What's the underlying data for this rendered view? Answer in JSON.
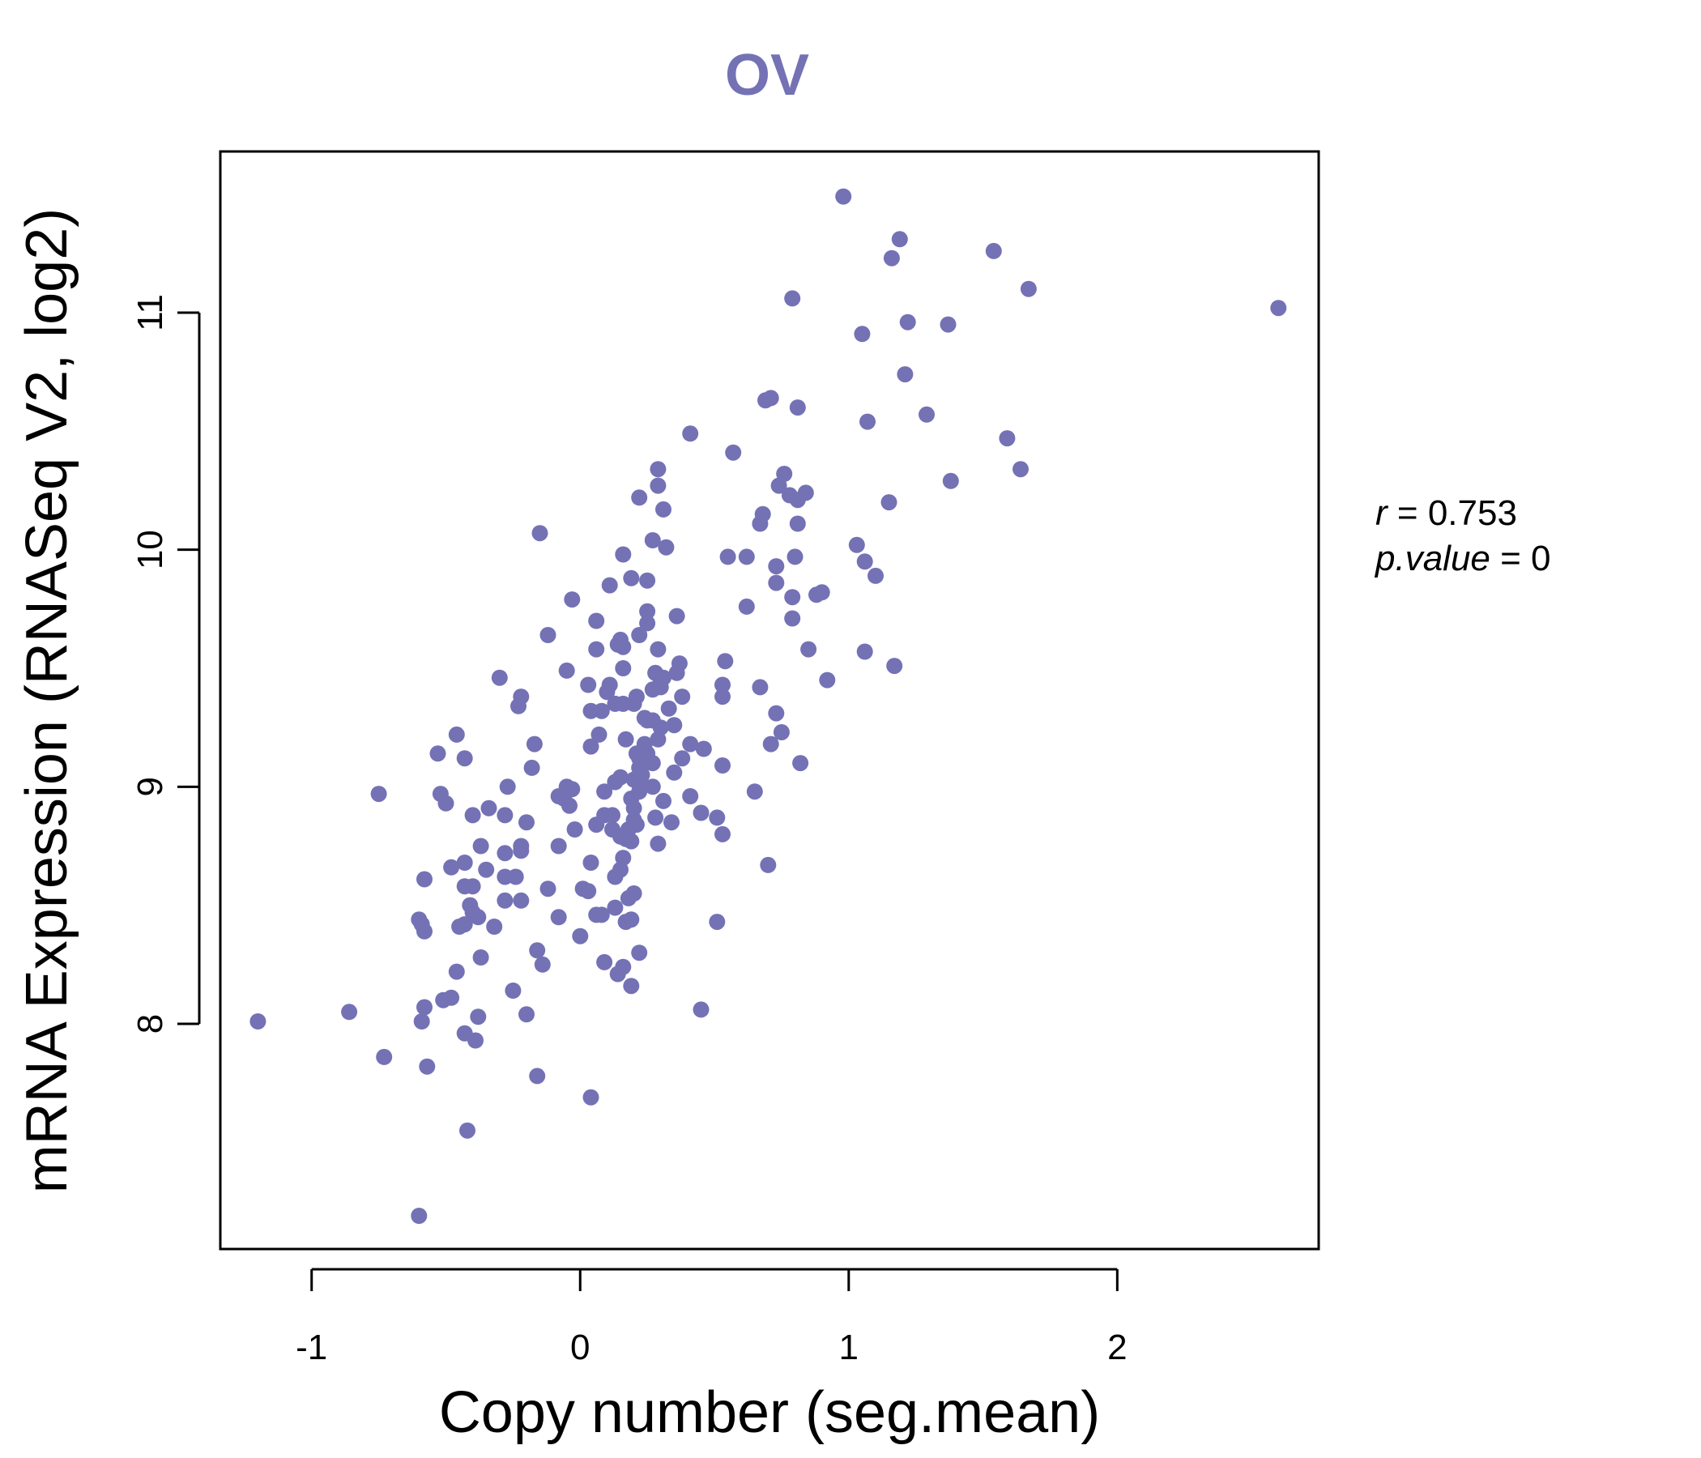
{
  "colors": {
    "accent": "#7472b5",
    "axis": "#000000",
    "background": "#ffffff"
  },
  "chart_data": {
    "type": "scatter",
    "title": "OV",
    "xlabel": "Copy number (seg.mean)",
    "ylabel": "mRNA Expression (RNASeq V2, log2)",
    "xlim": [
      -1.34,
      2.75
    ],
    "ylim": [
      7.05,
      11.68
    ],
    "x_ticks": [
      -1,
      0,
      1,
      2
    ],
    "x_tick_labels": [
      "-1",
      "0",
      "1",
      "2"
    ],
    "y_ticks": [
      8,
      9,
      10,
      11
    ],
    "y_tick_labels": [
      "8",
      "9",
      "10",
      "11"
    ],
    "grid": false,
    "stats": {
      "r_symbol": "r",
      "r_value": "0.753",
      "p_symbol": "p.value",
      "p_value": "0"
    },
    "points": [
      [
        0.98,
        11.49
      ],
      [
        1.19,
        11.31
      ],
      [
        1.54,
        11.26
      ],
      [
        1.16,
        11.23
      ],
      [
        1.67,
        11.1
      ],
      [
        0.79,
        11.06
      ],
      [
        2.6,
        11.02
      ],
      [
        1.22,
        10.96
      ],
      [
        1.37,
        10.95
      ],
      [
        1.05,
        10.91
      ],
      [
        1.21,
        10.74
      ],
      [
        0.69,
        10.63
      ],
      [
        0.71,
        10.64
      ],
      [
        0.81,
        10.6
      ],
      [
        1.29,
        10.57
      ],
      [
        1.07,
        10.54
      ],
      [
        0.41,
        10.49
      ],
      [
        1.59,
        10.47
      ],
      [
        0.57,
        10.41
      ],
      [
        1.64,
        10.34
      ],
      [
        0.29,
        10.34
      ],
      [
        1.38,
        10.29
      ],
      [
        0.76,
        10.32
      ],
      [
        0.29,
        10.27
      ],
      [
        0.74,
        10.27
      ],
      [
        0.78,
        10.23
      ],
      [
        0.84,
        10.24
      ],
      [
        0.22,
        10.22
      ],
      [
        0.81,
        10.21
      ],
      [
        1.15,
        10.2
      ],
      [
        0.31,
        10.17
      ],
      [
        0.68,
        10.15
      ],
      [
        0.67,
        10.11
      ],
      [
        0.81,
        10.11
      ],
      [
        -0.15,
        10.07
      ],
      [
        0.27,
        10.04
      ],
      [
        1.03,
        10.02
      ],
      [
        0.32,
        10.01
      ],
      [
        0.16,
        9.98
      ],
      [
        0.55,
        9.97
      ],
      [
        0.62,
        9.97
      ],
      [
        0.8,
        9.97
      ],
      [
        1.06,
        9.95
      ],
      [
        0.73,
        9.93
      ],
      [
        1.1,
        9.89
      ],
      [
        0.19,
        9.88
      ],
      [
        0.25,
        9.87
      ],
      [
        0.73,
        9.86
      ],
      [
        0.11,
        9.85
      ],
      [
        0.88,
        9.81
      ],
      [
        0.9,
        9.82
      ],
      [
        -0.03,
        9.79
      ],
      [
        0.79,
        9.8
      ],
      [
        0.62,
        9.76
      ],
      [
        0.25,
        9.74
      ],
      [
        0.36,
        9.72
      ],
      [
        0.79,
        9.71
      ],
      [
        0.06,
        9.7
      ],
      [
        0.25,
        9.69
      ],
      [
        -0.12,
        9.64
      ],
      [
        0.22,
        9.64
      ],
      [
        0.15,
        9.62
      ],
      [
        0.14,
        9.6
      ],
      [
        0.16,
        9.59
      ],
      [
        0.06,
        9.58
      ],
      [
        0.29,
        9.58
      ],
      [
        0.85,
        9.58
      ],
      [
        1.06,
        9.57
      ],
      [
        0.54,
        9.53
      ],
      [
        0.37,
        9.52
      ],
      [
        1.17,
        9.51
      ],
      [
        0.16,
        9.5
      ],
      [
        -0.05,
        9.49
      ],
      [
        0.28,
        9.48
      ],
      [
        0.36,
        9.48
      ],
      [
        0.31,
        9.46
      ],
      [
        0.3,
        9.45
      ],
      [
        -0.3,
        9.46
      ],
      [
        0.92,
        9.45
      ],
      [
        0.11,
        9.43
      ],
      [
        0.03,
        9.43
      ],
      [
        0.53,
        9.43
      ],
      [
        0.3,
        9.42
      ],
      [
        0.27,
        9.41
      ],
      [
        0.67,
        9.42
      ],
      [
        0.1,
        9.4
      ],
      [
        0.53,
        9.38
      ],
      [
        0.38,
        9.38
      ],
      [
        -0.22,
        9.38
      ],
      [
        0.21,
        9.38
      ],
      [
        0.16,
        9.35
      ],
      [
        0.13,
        9.35
      ],
      [
        0.2,
        9.35
      ],
      [
        -0.23,
        9.34
      ],
      [
        0.33,
        9.33
      ],
      [
        0.04,
        9.32
      ],
      [
        0.08,
        9.32
      ],
      [
        0.24,
        9.29
      ],
      [
        0.73,
        9.31
      ],
      [
        0.25,
        9.28
      ],
      [
        0.27,
        9.28
      ],
      [
        0.35,
        9.26
      ],
      [
        0.3,
        9.25
      ],
      [
        0.07,
        9.22
      ],
      [
        -0.46,
        9.22
      ],
      [
        0.75,
        9.23
      ],
      [
        0.17,
        9.2
      ],
      [
        0.29,
        9.2
      ],
      [
        0.41,
        9.18
      ],
      [
        0.24,
        9.18
      ],
      [
        -0.17,
        9.18
      ],
      [
        0.71,
        9.18
      ],
      [
        0.46,
        9.16
      ],
      [
        0.04,
        9.17
      ],
      [
        0.25,
        9.14
      ],
      [
        0.21,
        9.14
      ],
      [
        0.22,
        9.12
      ],
      [
        -0.53,
        9.14
      ],
      [
        -0.43,
        9.12
      ],
      [
        0.38,
        9.12
      ],
      [
        0.27,
        9.1
      ],
      [
        0.24,
        9.1
      ],
      [
        0.82,
        9.1
      ],
      [
        0.22,
        9.08
      ],
      [
        -0.18,
        9.08
      ],
      [
        0.53,
        9.09
      ],
      [
        0.35,
        9.06
      ],
      [
        0.23,
        9.05
      ],
      [
        0.15,
        9.04
      ],
      [
        0.2,
        9.03
      ],
      [
        0.13,
        9.02
      ],
      [
        0.22,
        9.01
      ],
      [
        0.27,
        9.0
      ],
      [
        -0.27,
        9.0
      ],
      [
        -0.05,
        9.0
      ],
      [
        -0.03,
        8.99
      ],
      [
        0.09,
        8.98
      ],
      [
        0.22,
        8.98
      ],
      [
        0.65,
        8.98
      ],
      [
        -0.75,
        8.97
      ],
      [
        0.41,
        8.96
      ],
      [
        -0.52,
        8.97
      ],
      [
        -0.08,
        8.96
      ],
      [
        -0.06,
        8.95
      ],
      [
        0.19,
        8.95
      ],
      [
        0.31,
        8.94
      ],
      [
        -0.5,
        8.93
      ],
      [
        -0.04,
        8.92
      ],
      [
        0.2,
        8.91
      ],
      [
        -0.34,
        8.91
      ],
      [
        0.45,
        8.89
      ],
      [
        -0.28,
        8.88
      ],
      [
        -0.4,
        8.88
      ],
      [
        0.09,
        8.88
      ],
      [
        0.12,
        8.88
      ],
      [
        0.51,
        8.87
      ],
      [
        0.28,
        8.87
      ],
      [
        0.2,
        8.86
      ],
      [
        0.34,
        8.85
      ],
      [
        -0.2,
        8.85
      ],
      [
        0.06,
        8.84
      ],
      [
        0.21,
        8.84
      ],
      [
        0.12,
        8.82
      ],
      [
        -0.02,
        8.82
      ],
      [
        0.18,
        8.82
      ],
      [
        0.53,
        8.8
      ],
      [
        0.15,
        8.79
      ],
      [
        0.17,
        8.78
      ],
      [
        0.19,
        8.77
      ],
      [
        0.29,
        8.76
      ],
      [
        -0.37,
        8.75
      ],
      [
        -0.22,
        8.75
      ],
      [
        -0.08,
        8.75
      ],
      [
        -0.22,
        8.73
      ],
      [
        -0.28,
        8.72
      ],
      [
        0.16,
        8.7
      ],
      [
        0.7,
        8.67
      ],
      [
        0.04,
        8.68
      ],
      [
        -0.43,
        8.68
      ],
      [
        -0.48,
        8.66
      ],
      [
        -0.35,
        8.65
      ],
      [
        0.15,
        8.65
      ],
      [
        0.13,
        8.62
      ],
      [
        -0.28,
        8.62
      ],
      [
        -0.24,
        8.62
      ],
      [
        -0.58,
        8.61
      ],
      [
        -0.43,
        8.58
      ],
      [
        -0.4,
        8.58
      ],
      [
        -0.12,
        8.57
      ],
      [
        0.01,
        8.57
      ],
      [
        0.03,
        8.56
      ],
      [
        0.2,
        8.55
      ],
      [
        0.18,
        8.53
      ],
      [
        -0.28,
        8.52
      ],
      [
        -0.22,
        8.52
      ],
      [
        0.13,
        8.49
      ],
      [
        -0.41,
        8.5
      ],
      [
        -0.4,
        8.47
      ],
      [
        0.08,
        8.46
      ],
      [
        0.06,
        8.46
      ],
      [
        -0.38,
        8.45
      ],
      [
        -0.08,
        8.45
      ],
      [
        0.19,
        8.44
      ],
      [
        -0.6,
        8.44
      ],
      [
        0.51,
        8.43
      ],
      [
        0.17,
        8.43
      ],
      [
        -0.59,
        8.42
      ],
      [
        -0.43,
        8.42
      ],
      [
        -0.32,
        8.41
      ],
      [
        -0.45,
        8.41
      ],
      [
        -0.58,
        8.39
      ],
      [
        0.0,
        8.37
      ],
      [
        -0.16,
        8.31
      ],
      [
        0.22,
        8.3
      ],
      [
        -0.37,
        8.28
      ],
      [
        0.09,
        8.26
      ],
      [
        -0.14,
        8.25
      ],
      [
        0.16,
        8.24
      ],
      [
        -0.46,
        8.22
      ],
      [
        0.14,
        8.21
      ],
      [
        0.19,
        8.16
      ],
      [
        -0.25,
        8.14
      ],
      [
        -0.48,
        8.11
      ],
      [
        -0.51,
        8.1
      ],
      [
        -0.58,
        8.07
      ],
      [
        0.45,
        8.06
      ],
      [
        -0.86,
        8.05
      ],
      [
        -0.2,
        8.04
      ],
      [
        -0.38,
        8.03
      ],
      [
        -1.2,
        8.01
      ],
      [
        -0.59,
        8.01
      ],
      [
        -0.43,
        7.96
      ],
      [
        -0.39,
        7.93
      ],
      [
        -0.73,
        7.86
      ],
      [
        -0.57,
        7.82
      ],
      [
        -0.16,
        7.78
      ],
      [
        0.04,
        7.69
      ],
      [
        -0.42,
        7.55
      ],
      [
        -0.6,
        7.19
      ]
    ]
  }
}
